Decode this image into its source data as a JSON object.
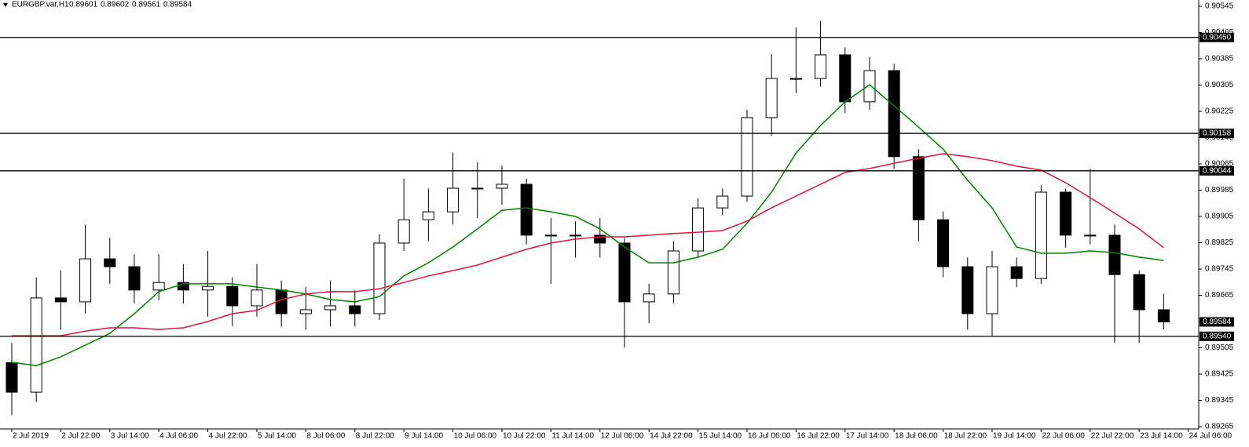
{
  "chart_data": {
    "type": "candlestick",
    "header": {
      "symbol": "EURGBP.var,H1",
      "quote": [
        0.89601,
        0.89602,
        0.89561,
        0.89584
      ]
    },
    "ylim": [
      0.89258,
      0.90564
    ],
    "yticks": [
      0.89265,
      0.89345,
      0.89425,
      0.89505,
      0.89585,
      0.89665,
      0.89745,
      0.89825,
      0.89905,
      0.89985,
      0.90065,
      0.90145,
      0.90225,
      0.90305,
      0.90385,
      0.90465,
      0.90545
    ],
    "xlim": [
      -0.48,
      48.43
    ],
    "xticks": [
      {
        "value": 0,
        "label": "2 Jul 2019"
      },
      {
        "value": 2,
        "label": "2 Jul 22:00"
      },
      {
        "value": 4,
        "label": "3 Jul 14:00"
      },
      {
        "value": 6,
        "label": "4 Jul 06:00"
      },
      {
        "value": 8,
        "label": "4 Jul 22:00"
      },
      {
        "value": 10,
        "label": "5 Jul 14:00"
      },
      {
        "value": 12,
        "label": "8 Jul 06:00"
      },
      {
        "value": 14,
        "label": "8 Jul 22:00"
      },
      {
        "value": 16,
        "label": "9 Jul 14:00"
      },
      {
        "value": 18,
        "label": "10 Jul 06:00"
      },
      {
        "value": 20,
        "label": "10 Jul 22:00"
      },
      {
        "value": 22,
        "label": "11 Jul 14:00"
      },
      {
        "value": 24,
        "label": "12 Jul 06:00"
      },
      {
        "value": 26,
        "label": "14 Jul 22:00"
      },
      {
        "value": 28,
        "label": "15 Jul 14:00"
      },
      {
        "value": 30,
        "label": "16 Jul 06:00"
      },
      {
        "value": 32,
        "label": "16 Jul 22:00"
      },
      {
        "value": 34,
        "label": "17 Jul 14:00"
      },
      {
        "value": 36,
        "label": "18 Jul 06:00"
      },
      {
        "value": 38,
        "label": "18 Jul 22:00"
      },
      {
        "value": 40,
        "label": "19 Jul 14:00"
      },
      {
        "value": 42,
        "label": "22 Jul 06:00"
      },
      {
        "value": 44,
        "label": "22 Jul 22:00"
      },
      {
        "value": 46,
        "label": "23 Jul 14:00"
      },
      {
        "value": 48,
        "label": "24 Jul 06:00"
      }
    ],
    "ohlc": [
      [
        0.8946,
        0.8952,
        0.893,
        0.8937
      ],
      [
        0.8937,
        0.8972,
        0.8934,
        0.89657
      ],
      [
        0.89657,
        0.8974,
        0.8956,
        0.89645
      ],
      [
        0.89645,
        0.8988,
        0.8961,
        0.89776
      ],
      [
        0.89776,
        0.8984,
        0.897,
        0.89752
      ],
      [
        0.89752,
        0.8979,
        0.8964,
        0.89681
      ],
      [
        0.89681,
        0.8979,
        0.8965,
        0.89704
      ],
      [
        0.89704,
        0.8976,
        0.8964,
        0.89681
      ],
      [
        0.89681,
        0.898,
        0.896,
        0.89692
      ],
      [
        0.89692,
        0.8972,
        0.8957,
        0.89633
      ],
      [
        0.89633,
        0.8976,
        0.896,
        0.89681
      ],
      [
        0.89681,
        0.8971,
        0.8957,
        0.89609
      ],
      [
        0.89609,
        0.8969,
        0.8956,
        0.89621
      ],
      [
        0.89621,
        0.8971,
        0.8957,
        0.89633
      ],
      [
        0.89633,
        0.8968,
        0.8957,
        0.89609
      ],
      [
        0.89609,
        0.8985,
        0.8959,
        0.89824
      ],
      [
        0.89824,
        0.9002,
        0.898,
        0.89895
      ],
      [
        0.89895,
        0.8999,
        0.8983,
        0.89919
      ],
      [
        0.89919,
        0.901,
        0.8988,
        0.89991
      ],
      [
        0.89991,
        0.9007,
        0.899,
        0.89991
      ],
      [
        0.89991,
        0.9006,
        0.8994,
        0.90003
      ],
      [
        0.90003,
        0.9002,
        0.8982,
        0.89848
      ],
      [
        0.89848,
        0.899,
        0.897,
        0.89848
      ],
      [
        0.89848,
        0.8989,
        0.8978,
        0.89848
      ],
      [
        0.89848,
        0.899,
        0.8978,
        0.89824
      ],
      [
        0.89824,
        0.8984,
        0.89505,
        0.89645
      ],
      [
        0.89645,
        0.897,
        0.8958,
        0.89669
      ],
      [
        0.89669,
        0.8983,
        0.8964,
        0.898
      ],
      [
        0.898,
        0.8996,
        0.8978,
        0.89931
      ],
      [
        0.89931,
        0.8999,
        0.8991,
        0.89967
      ],
      [
        0.89967,
        0.9023,
        0.8995,
        0.90206
      ],
      [
        0.90206,
        0.904,
        0.9015,
        0.90325
      ],
      [
        0.90325,
        0.9048,
        0.9028,
        0.90325
      ],
      [
        0.90325,
        0.905,
        0.903,
        0.90397
      ],
      [
        0.90397,
        0.9042,
        0.9022,
        0.90254
      ],
      [
        0.90254,
        0.9039,
        0.9023,
        0.90349
      ],
      [
        0.90349,
        0.9037,
        0.9005,
        0.90087
      ],
      [
        0.90087,
        0.9011,
        0.8983,
        0.89895
      ],
      [
        0.89895,
        0.8992,
        0.8972,
        0.89752
      ],
      [
        0.89752,
        0.8978,
        0.8956,
        0.89609
      ],
      [
        0.89609,
        0.898,
        0.8954,
        0.89752
      ],
      [
        0.89752,
        0.8978,
        0.8969,
        0.89716
      ],
      [
        0.89716,
        0.9,
        0.897,
        0.89979
      ],
      [
        0.89979,
        0.8999,
        0.8981,
        0.89848
      ],
      [
        0.89848,
        0.9005,
        0.8982,
        0.89848
      ],
      [
        0.89848,
        0.8988,
        0.8952,
        0.89728
      ],
      [
        0.89728,
        0.8974,
        0.8952,
        0.89621
      ],
      [
        0.89621,
        0.8967,
        0.89561,
        0.89584
      ]
    ],
    "lines": [
      {
        "color": "#008000",
        "values": [
          0.89461,
          0.89451,
          0.89478,
          0.89513,
          0.89549,
          0.89609,
          0.89676,
          0.897,
          0.897,
          0.897,
          0.8969,
          0.89681,
          0.89669,
          0.89652,
          0.89645,
          0.89661,
          0.89724,
          0.89764,
          0.89812,
          0.89867,
          0.89924,
          0.89931,
          0.89919,
          0.89905,
          0.89867,
          0.89812,
          0.89764,
          0.89764,
          0.89781,
          0.89805,
          0.89884,
          0.89979,
          0.90098,
          0.90182,
          0.90254,
          0.90306,
          0.90242,
          0.90177,
          0.9011,
          0.90015,
          0.89931,
          0.89812,
          0.89793,
          0.89793,
          0.898,
          0.89795,
          0.89781,
          0.89771
        ]
      },
      {
        "color": "#dc143c",
        "values": [
          0.89542,
          0.89542,
          0.89542,
          0.89556,
          0.89566,
          0.89566,
          0.89561,
          0.89566,
          0.89585,
          0.89609,
          0.89619,
          0.89652,
          0.89669,
          0.89676,
          0.89676,
          0.89685,
          0.89704,
          0.89724,
          0.8974,
          0.89757,
          0.89781,
          0.89805,
          0.89824,
          0.89836,
          0.89843,
          0.89843,
          0.89848,
          0.89853,
          0.89857,
          0.89862,
          0.89891,
          0.89931,
          0.89967,
          0.90003,
          0.90039,
          0.90051,
          0.90067,
          0.90082,
          0.90096,
          0.90087,
          0.90075,
          0.90058,
          0.90046,
          0.90008,
          0.89962,
          0.89915,
          0.89867,
          0.8981
        ]
      }
    ],
    "levels": [
      {
        "value": 0.9045,
        "label": "0.90450"
      },
      0.90158,
      0.90044,
      {
        "value": 0.8954,
        "label": "0.89540"
      }
    ],
    "last_price": 0.89584
  }
}
